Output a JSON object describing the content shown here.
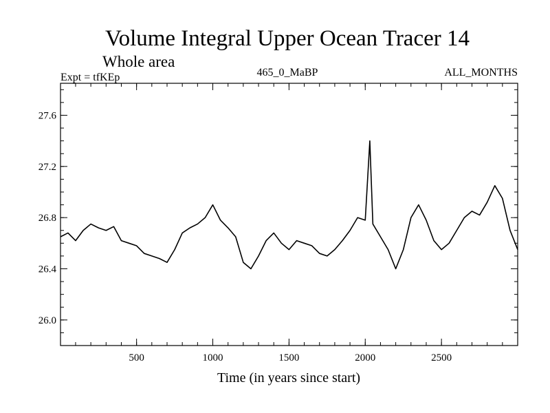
{
  "chart_data": {
    "type": "line",
    "title": "Volume Integral Upper Ocean Tracer 14",
    "subtitle": "Whole area",
    "experiment_label": "Expt = tfKEp",
    "run_label": "465_0_MaBP",
    "months_label": "ALL_MONTHS",
    "xlabel": "Time (in years since start)",
    "ylabel": "",
    "xlim": [
      1,
      3000
    ],
    "ylim": [
      25.8,
      27.85
    ],
    "x_ticks": [
      500,
      1000,
      1500,
      2000,
      2500
    ],
    "x_tick_labels": [
      "500",
      "1000",
      "1500",
      "2000",
      "2500"
    ],
    "y_ticks": [
      26.0,
      26.4,
      26.8,
      27.2,
      27.6
    ],
    "y_tick_labels": [
      "26.0",
      "26.4",
      "26.8",
      "27.2",
      "27.6"
    ],
    "x_minor_step": 100,
    "y_minor_step": 0.1,
    "grid": false,
    "line_color": "#000000",
    "series": [
      {
        "x": [
          1,
          50,
          100,
          150,
          200,
          250,
          300,
          350,
          400,
          450,
          500,
          550,
          600,
          650,
          700,
          750,
          800,
          850,
          900,
          950,
          1000,
          1050,
          1100,
          1150,
          1200,
          1250,
          1300,
          1350,
          1400,
          1450,
          1500,
          1550,
          1600,
          1650,
          1700,
          1750,
          1800,
          1850,
          1900,
          1950,
          2000,
          2030,
          2050,
          2100,
          2150,
          2200,
          2250,
          2300,
          2350,
          2400,
          2450,
          2500,
          2550,
          2600,
          2650,
          2700,
          2750,
          2800,
          2850,
          2900,
          2950,
          3000
        ],
        "values": [
          26.65,
          26.68,
          26.62,
          26.7,
          26.75,
          26.72,
          26.7,
          26.73,
          26.62,
          26.6,
          26.58,
          26.52,
          26.5,
          26.48,
          26.45,
          26.55,
          26.68,
          26.72,
          26.75,
          26.8,
          26.9,
          26.78,
          26.72,
          26.65,
          26.45,
          26.4,
          26.5,
          26.62,
          26.68,
          26.6,
          26.55,
          26.62,
          26.6,
          26.58,
          26.52,
          26.5,
          26.55,
          26.62,
          26.7,
          26.8,
          26.78,
          27.4,
          26.75,
          26.65,
          26.55,
          26.4,
          26.55,
          26.8,
          26.9,
          26.78,
          26.62,
          26.55,
          26.6,
          26.7,
          26.8,
          26.85,
          26.82,
          26.92,
          27.05,
          26.95,
          26.7,
          26.55
        ]
      }
    ]
  }
}
